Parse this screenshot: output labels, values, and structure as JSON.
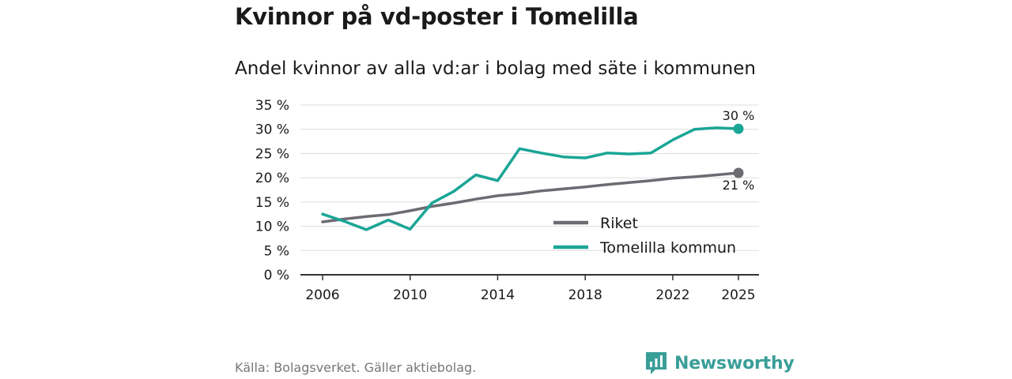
{
  "title": "Kvinnor på vd-poster i Tomelilla",
  "subtitle": "Andel kvinnor av alla vd:ar i bolag med säte i kommunen",
  "source": "Källa: Bolagsverket. Gäller aktiebolag.",
  "brand": "Newsworthy",
  "colors": {
    "riket": "#6d6b72",
    "tomelilla": "#1aa596",
    "grid": "#dddddd",
    "axis": "#333333",
    "brand": "#3a9e98"
  },
  "chart_data": {
    "type": "line",
    "title": "Andel kvinnor av alla vd:ar i bolag med säte i kommunen",
    "xlabel": "",
    "ylabel": "",
    "xlim": [
      2006,
      2025
    ],
    "ylim": [
      0,
      35
    ],
    "x_ticks": [
      2006,
      2010,
      2014,
      2018,
      2022,
      2025
    ],
    "y_ticks": [
      0,
      5,
      10,
      15,
      20,
      25,
      30,
      35
    ],
    "y_tick_labels": [
      "0 %",
      "5 %",
      "10 %",
      "15 %",
      "20 %",
      "25 %",
      "30 %",
      "35 %"
    ],
    "grid": true,
    "legend_position": "bottom-right",
    "x": [
      2006,
      2007,
      2008,
      2009,
      2010,
      2011,
      2012,
      2013,
      2014,
      2015,
      2016,
      2017,
      2018,
      2019,
      2020,
      2021,
      2022,
      2023,
      2024,
      2025
    ],
    "series": [
      {
        "name": "Riket",
        "color": "#6d6b72",
        "values": [
          10.9,
          11.5,
          12.0,
          12.4,
          13.2,
          14.1,
          14.8,
          15.6,
          16.3,
          16.7,
          17.3,
          17.7,
          18.1,
          18.6,
          19.0,
          19.4,
          19.9,
          20.2,
          20.6,
          21.0
        ],
        "end_label": "21 %"
      },
      {
        "name": "Tomelilla kommun",
        "color": "#1aa596",
        "values": [
          12.5,
          11.0,
          9.3,
          11.3,
          9.4,
          14.8,
          17.2,
          20.6,
          19.4,
          26.0,
          25.1,
          24.3,
          24.1,
          25.1,
          24.9,
          25.1,
          27.8,
          30.0,
          30.3,
          30.1
        ],
        "end_label": "30 %"
      }
    ]
  }
}
